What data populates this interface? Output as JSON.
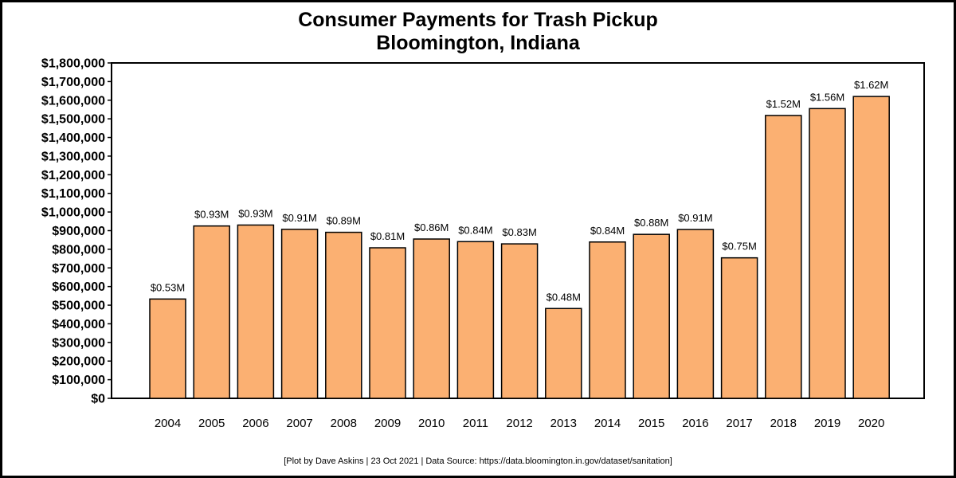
{
  "chart_data": {
    "type": "bar",
    "title": "Consumer Payments for Trash Pickup",
    "subtitle": "Bloomington, Indiana",
    "xlabel": "",
    "ylabel": "",
    "ylim": [
      0,
      1800000
    ],
    "grid": false,
    "bar_color": "#FBB072",
    "categories": [
      "2004",
      "2005",
      "2006",
      "2007",
      "2008",
      "2009",
      "2010",
      "2011",
      "2012",
      "2013",
      "2014",
      "2015",
      "2016",
      "2017",
      "2018",
      "2019",
      "2020"
    ],
    "values": [
      533000,
      925000,
      930000,
      907000,
      891000,
      808000,
      855000,
      841000,
      829000,
      482000,
      839000,
      880000,
      906000,
      754000,
      1518000,
      1555000,
      1620000
    ],
    "data_labels": [
      "$0.53M",
      "$0.93M",
      "$0.93M",
      "$0.91M",
      "$0.89M",
      "$0.81M",
      "$0.86M",
      "$0.84M",
      "$0.83M",
      "$0.48M",
      "$0.84M",
      "$0.88M",
      "$0.91M",
      "$0.75M",
      "$1.52M",
      "$1.56M",
      "$1.62M"
    ],
    "y_tick_values": [
      0,
      100000,
      200000,
      300000,
      400000,
      500000,
      600000,
      700000,
      800000,
      900000,
      1000000,
      1100000,
      1200000,
      1300000,
      1400000,
      1500000,
      1600000,
      1700000,
      1800000
    ],
    "y_tick_labels": [
      "$0",
      "$100,000",
      "$200,000",
      "$300,000",
      "$400,000",
      "$500,000",
      "$600,000",
      "$700,000",
      "$800,000",
      "$900,000",
      "$1,000,000",
      "$1,100,000",
      "$1,200,000",
      "$1,300,000",
      "$1,400,000",
      "$1,500,000",
      "$1,600,000",
      "$1,700,000",
      "$1,800,000"
    ],
    "footer": "[Plot by Dave Askins | 23 Oct 2021 | Data Source: https://data.bloomington.in.gov/dataset/sanitation]"
  }
}
